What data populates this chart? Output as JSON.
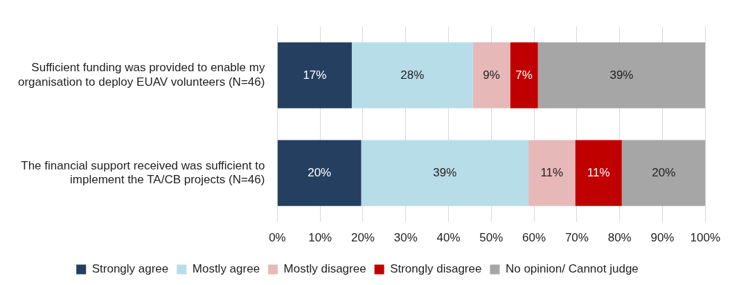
{
  "chart_data": {
    "type": "bar",
    "orientation": "horizontal",
    "stacked": true,
    "categories": [
      "Sufficient funding was provided to enable my organisation to deploy EUAV volunteers (N=46)",
      "The financial support received was sufficient to implement the TA/CB projects (N=46)"
    ],
    "series": [
      {
        "name": "Strongly agree",
        "color": "#243f60",
        "values": [
          17.4,
          19.6
        ],
        "value_labels": [
          "17%",
          "20%"
        ]
      },
      {
        "name": "Mostly agree",
        "color": "#b7dde8",
        "values": [
          28.3,
          39.1
        ],
        "value_labels": [
          "28%",
          "39%"
        ]
      },
      {
        "name": "Mostly disagree",
        "color": "#e6b9b8",
        "values": [
          8.7,
          10.9
        ],
        "value_labels": [
          "9%",
          "11%"
        ]
      },
      {
        "name": "Strongly disagree",
        "color": "#c00000",
        "values": [
          6.5,
          10.9
        ],
        "value_labels": [
          "7%",
          "11%"
        ]
      },
      {
        "name": "No opinion/ Cannot judge",
        "color": "#a6a6a6",
        "values": [
          39.1,
          19.6
        ],
        "value_labels": [
          "39%",
          "20%"
        ]
      }
    ],
    "xlim": [
      0,
      100
    ],
    "xticks": [
      {
        "value": 0,
        "label": "0%"
      },
      {
        "value": 10,
        "label": "10%"
      },
      {
        "value": 20,
        "label": "20%"
      },
      {
        "value": 30,
        "label": "30%"
      },
      {
        "value": 40,
        "label": "40%"
      },
      {
        "value": 50,
        "label": "50%"
      },
      {
        "value": 60,
        "label": "60%"
      },
      {
        "value": 70,
        "label": "70%"
      },
      {
        "value": 80,
        "label": "80%"
      },
      {
        "value": 90,
        "label": "90%"
      },
      {
        "value": 100,
        "label": "100%"
      }
    ],
    "grid": "x",
    "legend": "bottom"
  }
}
